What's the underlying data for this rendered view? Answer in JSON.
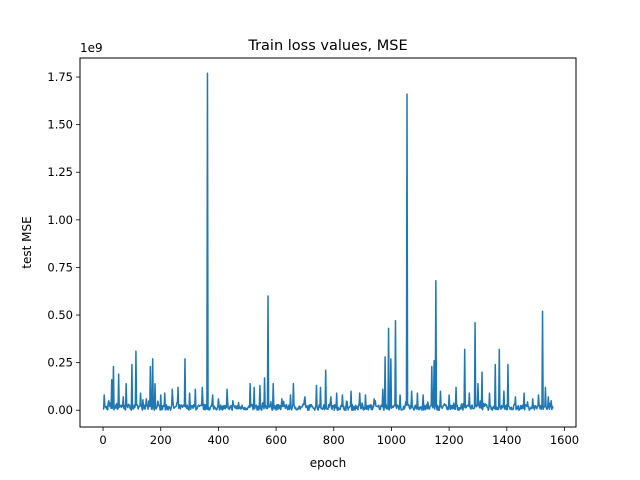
{
  "chart_data": {
    "type": "line",
    "title": "Train loss values, MSE",
    "xlabel": "epoch",
    "ylabel": "test MSE",
    "y_offset_label": "1e9",
    "xlim": [
      -80,
      1640
    ],
    "ylim": [
      -0.088,
      1.85
    ],
    "x_ticks": [
      0,
      200,
      400,
      600,
      800,
      1000,
      1200,
      1400,
      1600
    ],
    "x_tick_labels": [
      "0",
      "200",
      "400",
      "600",
      "800",
      "1000",
      "1200",
      "1400",
      "1600"
    ],
    "y_ticks": [
      0.0,
      0.25,
      0.5,
      0.75,
      1.0,
      1.25,
      1.5,
      1.75
    ],
    "y_tick_labels": [
      "0.00",
      "0.25",
      "0.50",
      "0.75",
      "1.00",
      "1.25",
      "1.50",
      "1.75"
    ],
    "grid": false,
    "legend": "none",
    "colors": {
      "series": "#1f77b4"
    },
    "series": [
      {
        "name": "",
        "x_start": 0,
        "x_end": 1560,
        "baseline": 0.015,
        "peaks": [
          [
            5,
            0.08
          ],
          [
            20,
            0.05
          ],
          [
            30,
            0.16
          ],
          [
            37,
            0.23
          ],
          [
            55,
            0.19
          ],
          [
            70,
            0.07
          ],
          [
            80,
            0.14
          ],
          [
            100,
            0.24
          ],
          [
            115,
            0.31
          ],
          [
            130,
            0.09
          ],
          [
            150,
            0.06
          ],
          [
            165,
            0.23
          ],
          [
            172,
            0.27
          ],
          [
            180,
            0.14
          ],
          [
            200,
            0.08
          ],
          [
            215,
            0.09
          ],
          [
            240,
            0.11
          ],
          [
            260,
            0.12
          ],
          [
            285,
            0.27
          ],
          [
            300,
            0.09
          ],
          [
            320,
            0.11
          ],
          [
            345,
            0.12
          ],
          [
            362,
            1.77
          ],
          [
            380,
            0.08
          ],
          [
            400,
            0.06
          ],
          [
            430,
            0.11
          ],
          [
            450,
            0.05
          ],
          [
            470,
            0.04
          ],
          [
            510,
            0.14
          ],
          [
            525,
            0.12
          ],
          [
            545,
            0.13
          ],
          [
            560,
            0.17
          ],
          [
            573,
            0.6
          ],
          [
            590,
            0.14
          ],
          [
            620,
            0.06
          ],
          [
            650,
            0.08
          ],
          [
            660,
            0.14
          ],
          [
            700,
            0.07
          ],
          [
            740,
            0.13
          ],
          [
            755,
            0.12
          ],
          [
            772,
            0.21
          ],
          [
            790,
            0.07
          ],
          [
            810,
            0.09
          ],
          [
            830,
            0.08
          ],
          [
            860,
            0.1
          ],
          [
            890,
            0.09
          ],
          [
            910,
            0.08
          ],
          [
            940,
            0.06
          ],
          [
            970,
            0.11
          ],
          [
            978,
            0.28
          ],
          [
            990,
            0.43
          ],
          [
            998,
            0.27
          ],
          [
            1015,
            0.47
          ],
          [
            1030,
            0.08
          ],
          [
            1055,
            1.66
          ],
          [
            1070,
            0.1
          ],
          [
            1090,
            0.09
          ],
          [
            1110,
            0.08
          ],
          [
            1140,
            0.23
          ],
          [
            1148,
            0.26
          ],
          [
            1155,
            0.68
          ],
          [
            1170,
            0.1
          ],
          [
            1200,
            0.08
          ],
          [
            1225,
            0.12
          ],
          [
            1255,
            0.32
          ],
          [
            1270,
            0.09
          ],
          [
            1290,
            0.46
          ],
          [
            1300,
            0.14
          ],
          [
            1315,
            0.2
          ],
          [
            1340,
            0.09
          ],
          [
            1360,
            0.24
          ],
          [
            1375,
            0.32
          ],
          [
            1390,
            0.1
          ],
          [
            1405,
            0.24
          ],
          [
            1430,
            0.07
          ],
          [
            1460,
            0.09
          ],
          [
            1490,
            0.06
          ],
          [
            1510,
            0.08
          ],
          [
            1525,
            0.52
          ],
          [
            1535,
            0.12
          ],
          [
            1545,
            0.07
          ],
          [
            1555,
            0.05
          ]
        ]
      }
    ]
  }
}
